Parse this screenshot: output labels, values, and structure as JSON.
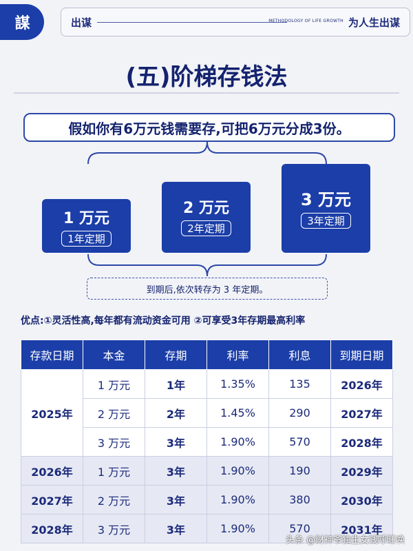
{
  "header": {
    "logo": "謀",
    "left": "出谋",
    "middle": "METHODOLOGY OF LIFE GROWTH",
    "right": "为人生出谋"
  },
  "title": "(五)阶梯存钱法",
  "intro": "假如你有6万元钱需要存,可把6万元分成3份。",
  "boxes": [
    {
      "amount": "1 万元",
      "term": "1年定期"
    },
    {
      "amount": "2 万元",
      "term": "2年定期"
    },
    {
      "amount": "3 万元",
      "term": "3年定期"
    }
  ],
  "note": "到期后,依次转存为 3 年定期。",
  "advantages": "优点:①灵活性高,每年都有流动资金可用 ②可享受3年存期最高利率",
  "table": {
    "headers": [
      "存款日期",
      "本金",
      "存期",
      "利率",
      "利息",
      "到期日期"
    ],
    "group_year": "2025年",
    "rows": [
      {
        "date": "",
        "principal": "1 万元",
        "term": "1年",
        "rate": "1.35%",
        "interest": "135",
        "due": "2026年"
      },
      {
        "date": "",
        "principal": "2 万元",
        "term": "2年",
        "rate": "1.45%",
        "interest": "290",
        "due": "2027年"
      },
      {
        "date": "",
        "principal": "3 万元",
        "term": "3年",
        "rate": "1.90%",
        "interest": "570",
        "due": "2028年"
      },
      {
        "date": "2026年",
        "principal": "1 万元",
        "term": "3年",
        "rate": "1.90%",
        "interest": "190",
        "due": "2029年"
      },
      {
        "date": "2027年",
        "principal": "2 万元",
        "term": "3年",
        "rate": "1.90%",
        "interest": "380",
        "due": "2030年"
      },
      {
        "date": "2028年",
        "principal": "3 万元",
        "term": "3年",
        "rate": "1.90%",
        "interest": "570",
        "due": "2031年"
      }
    ]
  },
  "watermark": "头条 @财神爷独生女钱呼旺唤",
  "colors": {
    "primary": "#1b3ea8",
    "title": "#14236e",
    "rowShade": "#e6e9f3"
  }
}
